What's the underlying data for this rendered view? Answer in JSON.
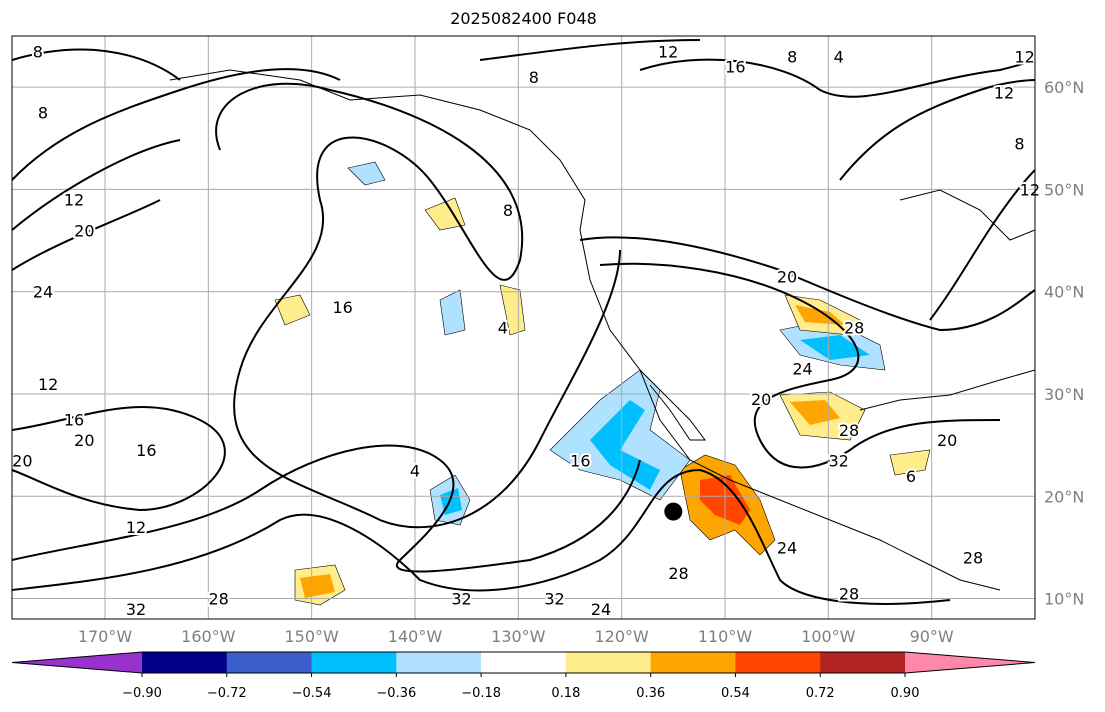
{
  "title": "2025082400 F048",
  "map": {
    "lon_range": [
      -179,
      -80
    ],
    "lat_range": [
      8,
      65
    ],
    "lon_ticks": [
      {
        "lon": -170,
        "label": "170°W"
      },
      {
        "lon": -160,
        "label": "160°W"
      },
      {
        "lon": -150,
        "label": "150°W"
      },
      {
        "lon": -140,
        "label": "140°W"
      },
      {
        "lon": -130,
        "label": "130°W"
      },
      {
        "lon": -120,
        "label": "120°W"
      },
      {
        "lon": -110,
        "label": "110°W"
      },
      {
        "lon": -100,
        "label": "100°W"
      },
      {
        "lon": -90,
        "label": "90°W"
      }
    ],
    "lat_ticks": [
      {
        "lat": 60,
        "label": "60°N"
      },
      {
        "lat": 50,
        "label": "50°N"
      },
      {
        "lat": 40,
        "label": "40°N"
      },
      {
        "lat": 30,
        "label": "30°N"
      },
      {
        "lat": 20,
        "label": "20°N"
      },
      {
        "lat": 10,
        "label": "10°N"
      }
    ],
    "contour_labels": [
      {
        "lon": -176.5,
        "lat": 63.5,
        "text": "8"
      },
      {
        "lon": -176,
        "lat": 57.5,
        "text": "8"
      },
      {
        "lon": -173,
        "lat": 49,
        "text": "12"
      },
      {
        "lon": -172,
        "lat": 46,
        "text": "20"
      },
      {
        "lon": -176,
        "lat": 40,
        "text": "24"
      },
      {
        "lon": -175.5,
        "lat": 31,
        "text": "12"
      },
      {
        "lon": -173,
        "lat": 27.5,
        "text": "16"
      },
      {
        "lon": -172,
        "lat": 25.5,
        "text": "20"
      },
      {
        "lon": -178,
        "lat": 23.5,
        "text": "20"
      },
      {
        "lon": -166,
        "lat": 24.5,
        "text": "16"
      },
      {
        "lon": -167,
        "lat": 17,
        "text": "12"
      },
      {
        "lon": -167,
        "lat": 9,
        "text": "32"
      },
      {
        "lon": -159,
        "lat": 10,
        "text": "28"
      },
      {
        "lon": -147,
        "lat": 38.5,
        "text": "16"
      },
      {
        "lon": -140,
        "lat": 22.5,
        "text": "4"
      },
      {
        "lon": -135.5,
        "lat": 10,
        "text": "32"
      },
      {
        "lon": -126.5,
        "lat": 10,
        "text": "32"
      },
      {
        "lon": -122,
        "lat": 9,
        "text": "24"
      },
      {
        "lon": -124,
        "lat": 23.5,
        "text": "16"
      },
      {
        "lon": -131.5,
        "lat": 36.5,
        "text": "4"
      },
      {
        "lon": -131,
        "lat": 48,
        "text": "8"
      },
      {
        "lon": -128.5,
        "lat": 61,
        "text": "8"
      },
      {
        "lon": -115.5,
        "lat": 63.5,
        "text": "12"
      },
      {
        "lon": -109,
        "lat": 62,
        "text": "16"
      },
      {
        "lon": -103.5,
        "lat": 63,
        "text": "8"
      },
      {
        "lon": -99,
        "lat": 63,
        "text": "4"
      },
      {
        "lon": -81,
        "lat": 63,
        "text": "12"
      },
      {
        "lon": -83,
        "lat": 59.5,
        "text": "12"
      },
      {
        "lon": -81.5,
        "lat": 54.5,
        "text": "8"
      },
      {
        "lon": -80.5,
        "lat": 50,
        "text": "12"
      },
      {
        "lon": -104,
        "lat": 41.5,
        "text": "20"
      },
      {
        "lon": -97.5,
        "lat": 36.5,
        "text": "28"
      },
      {
        "lon": -102.5,
        "lat": 32.5,
        "text": "24"
      },
      {
        "lon": -106.5,
        "lat": 29.5,
        "text": "20"
      },
      {
        "lon": -98,
        "lat": 26.5,
        "text": "28"
      },
      {
        "lon": -99,
        "lat": 23.5,
        "text": "32"
      },
      {
        "lon": -88.5,
        "lat": 25.5,
        "text": "20"
      },
      {
        "lon": -92,
        "lat": 22,
        "text": "6"
      },
      {
        "lon": -104,
        "lat": 15,
        "text": "24"
      },
      {
        "lon": -98,
        "lat": 10.5,
        "text": "28"
      },
      {
        "lon": -114.5,
        "lat": 12.5,
        "text": "28"
      },
      {
        "lon": -86,
        "lat": 14,
        "text": "28"
      }
    ],
    "marker": {
      "lon": -115,
      "lat": 18.5
    }
  },
  "colorbar": {
    "colors": [
      "#9932CC",
      "#00008B",
      "#3A5FCD",
      "#00BFFF",
      "#B0E2FF",
      "#FFFFFF",
      "#FFEC8B",
      "#FFA500",
      "#FF4500",
      "#B22222",
      "#FF88AA"
    ],
    "tick_labels": [
      "−0.90",
      "−0.72",
      "−0.54",
      "−0.36",
      "−0.18",
      "0.18",
      "0.36",
      "0.54",
      "0.72",
      "0.90"
    ]
  }
}
